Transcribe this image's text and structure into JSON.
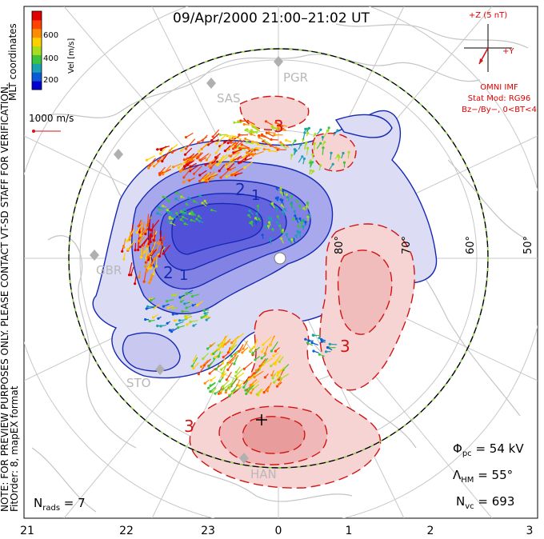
{
  "header": {
    "title": "09/Apr/2000 21:00–21:02 UT"
  },
  "side_notes": {
    "coords": "MLT coordinates",
    "preview": "NOTE: FOR PREVIEW PURPOSES ONLY. PLEASE CONTACT VT-SD STAFF FOR VERIFICATION.",
    "fit": "FitOrder: 8, mapEX format"
  },
  "colorbar": {
    "label": "Vel [m/s]",
    "ticks": [
      "600",
      "400",
      "200"
    ],
    "colors": [
      "#0000d0",
      "#0a5ad6",
      "#1aa0b0",
      "#3cc43c",
      "#a8dc1e",
      "#ffd000",
      "#ff8c00",
      "#ff4400",
      "#e00000"
    ]
  },
  "scale": {
    "label": "1000 m/s"
  },
  "imf": {
    "z_label": "+Z (5 nT)",
    "y_label": "+Y",
    "source": "OMNI IMF",
    "model": "Stat Mod: RG96",
    "condition": "Bz−/By−, 0<BT<4"
  },
  "latitudes": [
    "80°",
    "70°",
    "60°",
    "50°"
  ],
  "mlt_ticks": [
    "21",
    "22",
    "23",
    "0",
    "1",
    "2",
    "3"
  ],
  "stations": [
    "PGR",
    "SAS",
    "GBR",
    "STO",
    "HAN"
  ],
  "contour_labels": {
    "pos_a": "3",
    "pos_b": "3",
    "pos_c": "3",
    "neg_a": "2",
    "neg_b": "1",
    "neg_c": "2",
    "neg_d": "1"
  },
  "stats": {
    "phi_sym": "Φ",
    "phi_sub": "pc",
    "phi_val": " = 54 kV",
    "lam_sym": "Λ",
    "lam_sub": "HM",
    "lam_val": " = 55°",
    "nvc_sym": "N",
    "nvc_sub": "vc",
    "nvc_val": " = 693"
  },
  "nrads": {
    "sym": "N",
    "sub": "rads",
    "val": " = 7"
  },
  "colors": {
    "positive_cell": "#f5b8b8",
    "negative_cell": "#6c6ce8",
    "pos_line": "#d21414",
    "neg_line": "#1428b4"
  }
}
